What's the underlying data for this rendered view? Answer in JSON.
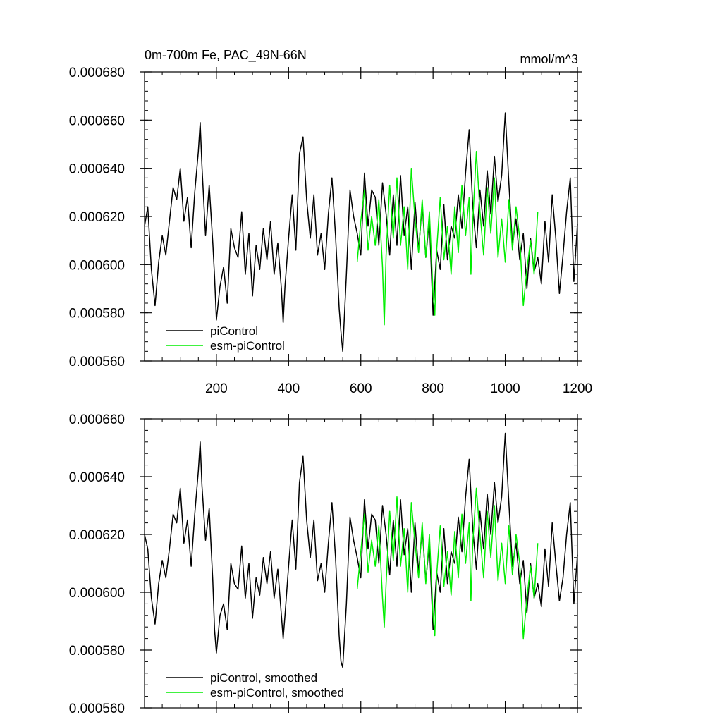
{
  "chart_data": [
    {
      "type": "line",
      "title": "0m-700m Fe, PAC_49N-66N",
      "units": "mmol/m^3",
      "xlim": [
        1,
        1200
      ],
      "ylim": [
        0.00056,
        0.00068
      ],
      "xticks": [
        200,
        400,
        600,
        800,
        1000,
        1200
      ],
      "xtick_labels": [
        "200",
        "400",
        "600",
        "800",
        "1000",
        "1200"
      ],
      "yticks": [
        0.00056,
        0.00058,
        0.0006,
        0.00062,
        0.00064,
        0.00066,
        0.00068
      ],
      "ytick_labels": [
        "0.000560",
        "0.000580",
        "0.000600",
        "0.000620",
        "0.000640",
        "0.000660",
        "0.000680"
      ],
      "legend_position": "bottom-left",
      "series": [
        {
          "name": "piControl",
          "color": "#000000",
          "x": [
            1,
            10,
            20,
            30,
            40,
            50,
            60,
            70,
            80,
            90,
            100,
            110,
            120,
            130,
            140,
            150,
            155,
            160,
            170,
            180,
            190,
            195,
            200,
            210,
            220,
            230,
            240,
            250,
            260,
            270,
            280,
            290,
            300,
            310,
            320,
            330,
            340,
            350,
            360,
            370,
            380,
            385,
            390,
            400,
            410,
            420,
            430,
            440,
            450,
            460,
            470,
            480,
            490,
            500,
            510,
            520,
            530,
            540,
            545,
            550,
            560,
            570,
            580,
            590,
            600,
            610,
            620,
            630,
            640,
            650,
            660,
            670,
            680,
            690,
            700,
            710,
            720,
            730,
            740,
            750,
            760,
            770,
            780,
            790,
            800,
            810,
            820,
            830,
            840,
            850,
            860,
            870,
            880,
            890,
            900,
            910,
            920,
            930,
            940,
            950,
            960,
            970,
            980,
            990,
            1000,
            1010,
            1020,
            1030,
            1040,
            1050,
            1060,
            1070,
            1080,
            1090,
            1100,
            1110,
            1120,
            1130,
            1140,
            1150,
            1160,
            1170,
            1180,
            1190,
            1200
          ],
          "values": [
            0.000616,
            0.000624,
            0.000598,
            0.000583,
            0.000601,
            0.000612,
            0.000604,
            0.000618,
            0.000632,
            0.000627,
            0.00064,
            0.000618,
            0.000628,
            0.000607,
            0.00063,
            0.000647,
            0.000659,
            0.000641,
            0.000612,
            0.000633,
            0.000609,
            0.000595,
            0.000577,
            0.000591,
            0.000599,
            0.000584,
            0.000615,
            0.000607,
            0.000603,
            0.000622,
            0.000596,
            0.000613,
            0.000587,
            0.000608,
            0.000598,
            0.000615,
            0.000602,
            0.000618,
            0.000596,
            0.000609,
            0.00059,
            0.000576,
            0.000591,
            0.000611,
            0.000629,
            0.000606,
            0.000646,
            0.000653,
            0.000627,
            0.000611,
            0.000629,
            0.000604,
            0.000613,
            0.000598,
            0.000621,
            0.000636,
            0.000612,
            0.000582,
            0.000572,
            0.000564,
            0.000596,
            0.000631,
            0.00062,
            0.000613,
            0.000604,
            0.000638,
            0.000616,
            0.000631,
            0.000628,
            0.000608,
            0.000634,
            0.000621,
            0.000604,
            0.000629,
            0.000608,
            0.000637,
            0.000612,
            0.000624,
            0.000598,
            0.000626,
            0.000606,
            0.000625,
            0.000603,
            0.000619,
            0.000579,
            0.000606,
            0.000598,
            0.000625,
            0.000602,
            0.000616,
            0.000611,
            0.000629,
            0.000615,
            0.000638,
            0.000656,
            0.000624,
            0.000607,
            0.000631,
            0.000616,
            0.000639,
            0.000621,
            0.000645,
            0.000626,
            0.000637,
            0.000663,
            0.000634,
            0.000608,
            0.000619,
            0.000602,
            0.000613,
            0.00059,
            0.000611,
            0.000597,
            0.000603,
            0.000592,
            0.000618,
            0.000601,
            0.000629,
            0.000611,
            0.000588,
            0.000604,
            0.000622,
            0.000636,
            0.000593,
            0.000617
          ]
        },
        {
          "name": "esm-piControl",
          "color": "#00ee00",
          "x": [
            590,
            600,
            610,
            620,
            630,
            640,
            650,
            660,
            665,
            670,
            680,
            690,
            700,
            710,
            720,
            730,
            740,
            750,
            760,
            770,
            780,
            790,
            800,
            805,
            810,
            820,
            830,
            840,
            850,
            860,
            870,
            880,
            890,
            900,
            905,
            910,
            920,
            930,
            940,
            950,
            960,
            970,
            980,
            990,
            1000,
            1010,
            1020,
            1030,
            1040,
            1050,
            1060,
            1070,
            1080,
            1090
          ],
          "values": [
            0.000601,
            0.000618,
            0.000631,
            0.000606,
            0.00062,
            0.000608,
            0.000627,
            0.000599,
            0.000575,
            0.000604,
            0.000633,
            0.000611,
            0.000636,
            0.000608,
            0.000624,
            0.000598,
            0.00064,
            0.000619,
            0.000605,
            0.000627,
            0.000603,
            0.000622,
            0.000588,
            0.000579,
            0.000606,
            0.000628,
            0.000602,
            0.000616,
            0.000596,
            0.000624,
            0.000605,
            0.000633,
            0.000612,
            0.000628,
            0.000596,
            0.000618,
            0.000647,
            0.000622,
            0.000604,
            0.000632,
            0.000613,
            0.000636,
            0.000603,
            0.000619,
            0.000601,
            0.000627,
            0.000606,
            0.000624,
            0.000611,
            0.000583,
            0.000598,
            0.00061,
            0.000596,
            0.000622
          ]
        }
      ]
    },
    {
      "type": "line",
      "title": "",
      "xlim": [
        1,
        1200
      ],
      "ylim": [
        0.00056,
        0.00066
      ],
      "yticks": [
        0.00056,
        0.00058,
        0.0006,
        0.00062,
        0.00064,
        0.00066
      ],
      "ytick_labels": [
        "0.000560",
        "0.000580",
        "0.000600",
        "0.000620",
        "0.000640",
        "0.000660"
      ],
      "legend_position": "bottom-left",
      "series": [
        {
          "name": "piControl, smoothed",
          "color": "#000000",
          "x": [
            1,
            10,
            20,
            30,
            40,
            50,
            60,
            70,
            80,
            90,
            100,
            110,
            120,
            130,
            140,
            150,
            155,
            160,
            170,
            180,
            190,
            195,
            200,
            210,
            220,
            230,
            240,
            250,
            260,
            270,
            280,
            290,
            300,
            310,
            320,
            330,
            340,
            350,
            360,
            370,
            380,
            385,
            390,
            400,
            410,
            420,
            430,
            440,
            450,
            460,
            470,
            480,
            490,
            500,
            510,
            520,
            530,
            540,
            545,
            550,
            560,
            570,
            580,
            590,
            600,
            610,
            620,
            630,
            640,
            650,
            660,
            670,
            680,
            690,
            700,
            710,
            720,
            730,
            740,
            750,
            760,
            770,
            780,
            790,
            800,
            810,
            820,
            830,
            840,
            850,
            860,
            870,
            880,
            890,
            900,
            910,
            920,
            930,
            940,
            950,
            960,
            970,
            980,
            990,
            1000,
            1010,
            1020,
            1030,
            1040,
            1050,
            1060,
            1070,
            1080,
            1090,
            1100,
            1110,
            1120,
            1130,
            1140,
            1150,
            1160,
            1170,
            1180,
            1190,
            1200
          ],
          "values": [
            0.00062,
            0.000615,
            0.000598,
            0.000589,
            0.000603,
            0.000611,
            0.000605,
            0.000615,
            0.000627,
            0.000624,
            0.000636,
            0.000617,
            0.000625,
            0.000609,
            0.000627,
            0.000642,
            0.000652,
            0.000637,
            0.000618,
            0.000629,
            0.000604,
            0.000587,
            0.000579,
            0.000592,
            0.000596,
            0.000587,
            0.00061,
            0.000603,
            0.000601,
            0.000616,
            0.000598,
            0.00061,
            0.000591,
            0.000605,
            0.000599,
            0.000612,
            0.000603,
            0.000614,
            0.000598,
            0.000608,
            0.000592,
            0.000584,
            0.000592,
            0.000609,
            0.000625,
            0.000608,
            0.000638,
            0.000647,
            0.000625,
            0.000612,
            0.000625,
            0.000604,
            0.00061,
            0.0006,
            0.000617,
            0.000631,
            0.000612,
            0.000585,
            0.000576,
            0.000574,
            0.000596,
            0.000626,
            0.000618,
            0.000612,
            0.000605,
            0.000632,
            0.000615,
            0.000627,
            0.000625,
            0.00061,
            0.00063,
            0.00062,
            0.000606,
            0.000625,
            0.000609,
            0.000632,
            0.000613,
            0.000622,
            0.0006,
            0.000624,
            0.000607,
            0.000622,
            0.000604,
            0.000617,
            0.000587,
            0.000607,
            0.0006,
            0.000622,
            0.000603,
            0.000614,
            0.00061,
            0.000626,
            0.000614,
            0.000633,
            0.000646,
            0.000622,
            0.000608,
            0.000628,
            0.000615,
            0.000634,
            0.00062,
            0.000638,
            0.000624,
            0.000633,
            0.000655,
            0.000631,
            0.000609,
            0.000617,
            0.000603,
            0.000611,
            0.000593,
            0.00061,
            0.000598,
            0.000603,
            0.000595,
            0.000615,
            0.000602,
            0.000624,
            0.00061,
            0.000597,
            0.000605,
            0.00062,
            0.000631,
            0.000596,
            0.000613
          ]
        },
        {
          "name": "esm-piControl, smoothed",
          "color": "#00ee00",
          "x": [
            590,
            600,
            610,
            620,
            630,
            640,
            650,
            660,
            665,
            670,
            680,
            690,
            700,
            710,
            720,
            730,
            740,
            750,
            760,
            770,
            780,
            790,
            800,
            805,
            810,
            820,
            830,
            840,
            850,
            860,
            870,
            880,
            890,
            900,
            905,
            910,
            920,
            930,
            940,
            950,
            960,
            970,
            980,
            990,
            1000,
            1010,
            1020,
            1030,
            1040,
            1050,
            1060,
            1070,
            1080,
            1090
          ],
          "values": [
            0.000601,
            0.000614,
            0.000627,
            0.000607,
            0.000618,
            0.000609,
            0.000623,
            0.000598,
            0.000588,
            0.000603,
            0.000628,
            0.000611,
            0.000633,
            0.000609,
            0.000622,
            0.0006,
            0.000631,
            0.000617,
            0.000605,
            0.000624,
            0.000603,
            0.00062,
            0.000592,
            0.000585,
            0.000606,
            0.000623,
            0.000602,
            0.000614,
            0.000599,
            0.000621,
            0.000605,
            0.000627,
            0.00061,
            0.000624,
            0.000597,
            0.000617,
            0.000636,
            0.00062,
            0.000605,
            0.000628,
            0.000612,
            0.00063,
            0.000604,
            0.000617,
            0.000603,
            0.000623,
            0.000606,
            0.00062,
            0.00061,
            0.000584,
            0.000598,
            0.000609,
            0.000598,
            0.000617
          ]
        }
      ]
    }
  ]
}
